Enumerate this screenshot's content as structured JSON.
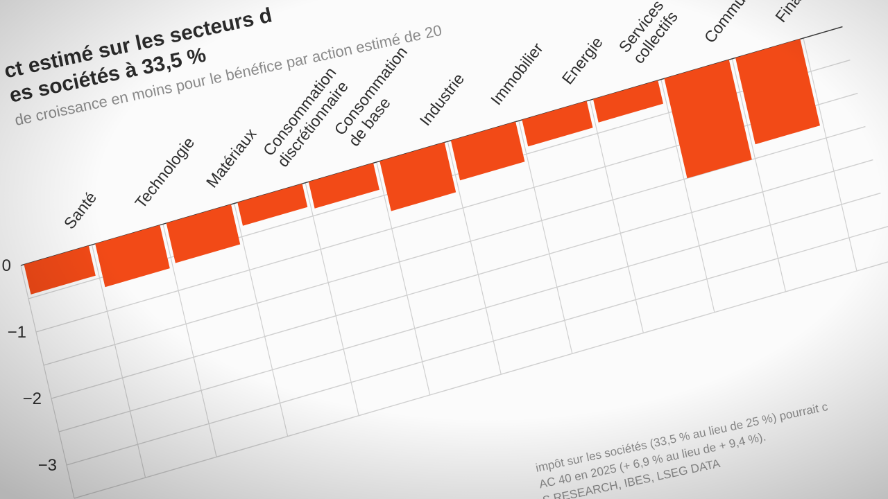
{
  "header": {
    "title_lines": [
      "ct estimé sur les secteurs d",
      "es sociétés à 33,5 %"
    ],
    "subtitle": "de croissance en moins pour le bénéfice par action estimé de 20"
  },
  "chart_data": {
    "type": "bar",
    "title": "ct estimé sur les secteurs d… es sociétés à 33,5 %",
    "subtitle": "de croissance en moins pour le bénéfice par action estimé de 20",
    "categories": [
      [
        "Santé"
      ],
      [
        "Technologie"
      ],
      [
        "Matériaux"
      ],
      [
        "Consommation",
        "discrétionnaire"
      ],
      [
        "Consommation",
        "de base"
      ],
      [
        "Industrie"
      ],
      [
        "Immobilier"
      ],
      [
        "Energie"
      ],
      [
        "Services",
        "collectifs"
      ],
      [
        "Commu"
      ],
      [
        "Finan"
      ]
    ],
    "values": [
      -0.45,
      -0.65,
      -0.6,
      -0.35,
      -0.4,
      -0.75,
      -0.6,
      -0.4,
      -0.35,
      -1.5,
      -1.3
    ],
    "yticks": [
      {
        "value": 0,
        "label": "0"
      },
      {
        "value": -1,
        "label": "−1"
      },
      {
        "value": -2,
        "label": "−2"
      },
      {
        "value": -3,
        "label": "−3"
      }
    ],
    "ylim": [
      -3.5,
      0
    ],
    "grid": true,
    "xlabel": "",
    "ylabel": "",
    "colors": {
      "bar": "#f24a17",
      "grid": "#cfcfcf",
      "paper": "#fcfcfc"
    }
  },
  "footnote": {
    "lines": [
      "impôt sur les sociétés (33,5 % au lieu de 25 %) pourrait c",
      "AC 40 en 2025 (+ 6,9 % au lieu de + 9,4 %).",
      "S RESEARCH, IBES, LSEG DATA"
    ]
  }
}
